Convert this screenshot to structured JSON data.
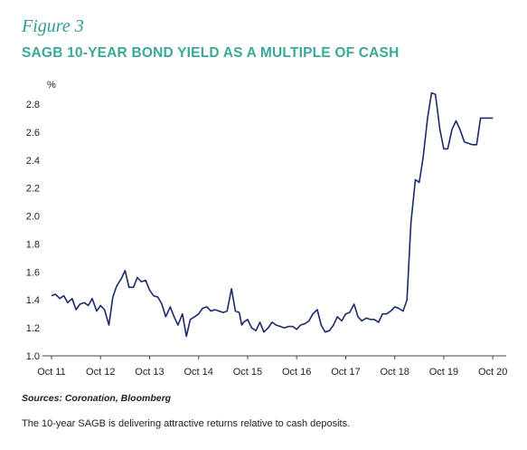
{
  "figure": {
    "label": "Figure 3",
    "title": "SAGB 10-YEAR BOND YIELD AS A MULTIPLE OF CASH",
    "source": "Sources: Coronation, Bloomberg",
    "caption": "The 10-year SAGB is delivering attractive returns relative to cash deposits."
  },
  "colors": {
    "line": "#1b2a6b",
    "title": "#3aa89a",
    "axis": "#444444"
  },
  "chart_data": {
    "type": "line",
    "title": "SAGB 10-YEAR BOND YIELD AS A MULTIPLE OF CASH",
    "ylabel": "%",
    "xlabel": "",
    "ylim": [
      1.0,
      2.9
    ],
    "xlim": [
      2011.75,
      2020.95
    ],
    "grid": false,
    "yticks": [
      "1.0",
      "1.2",
      "1.4",
      "1.6",
      "1.8",
      "2.0",
      "2.2",
      "2.4",
      "2.6",
      "2.8"
    ],
    "xticks": [
      {
        "x": 2011.75,
        "label": "Oct 11"
      },
      {
        "x": 2012.75,
        "label": "Oct 12"
      },
      {
        "x": 2013.75,
        "label": "Oct 13"
      },
      {
        "x": 2014.75,
        "label": "Oct 14"
      },
      {
        "x": 2015.75,
        "label": "Oct 15"
      },
      {
        "x": 2016.75,
        "label": "Oct 16"
      },
      {
        "x": 2017.75,
        "label": "Oct 17"
      },
      {
        "x": 2018.75,
        "label": "Oct 18"
      },
      {
        "x": 2019.75,
        "label": "Oct 19"
      },
      {
        "x": 2020.75,
        "label": "Oct 20"
      }
    ],
    "series": [
      {
        "x": [
          2011.75,
          2011.83,
          2011.92,
          2012.0,
          2012.08,
          2012.17,
          2012.25,
          2012.33,
          2012.42,
          2012.5,
          2012.58,
          2012.67,
          2012.75,
          2012.83,
          2012.92,
          2013.0,
          2013.08,
          2013.17,
          2013.25,
          2013.33,
          2013.42,
          2013.5,
          2013.58,
          2013.67,
          2013.75,
          2013.83,
          2013.92,
          2014.0,
          2014.08,
          2014.17,
          2014.25,
          2014.33,
          2014.42,
          2014.5,
          2014.58,
          2014.67,
          2014.75,
          2014.83,
          2014.92,
          2015.0,
          2015.08,
          2015.17,
          2015.25,
          2015.33,
          2015.42,
          2015.5,
          2015.58,
          2015.63,
          2015.67,
          2015.75,
          2015.83,
          2015.92,
          2016.0,
          2016.08,
          2016.17,
          2016.25,
          2016.33,
          2016.42,
          2016.5,
          2016.58,
          2016.67,
          2016.75,
          2016.83,
          2016.92,
          2017.0,
          2017.08,
          2017.17,
          2017.25,
          2017.33,
          2017.42,
          2017.5,
          2017.58,
          2017.67,
          2017.75,
          2017.83,
          2017.92,
          2018.0,
          2018.08,
          2018.17,
          2018.25,
          2018.33,
          2018.42,
          2018.5,
          2018.58,
          2018.67,
          2018.75,
          2018.83,
          2018.92,
          2019.0,
          2019.08,
          2019.17,
          2019.25,
          2019.33,
          2019.42,
          2019.5,
          2019.58,
          2019.67,
          2019.75,
          2019.83,
          2019.92,
          2020.0,
          2020.08,
          2020.17,
          2020.25,
          2020.33,
          2020.42,
          2020.5,
          2020.58,
          2020.67,
          2020.75,
          2020.83,
          2020.92
        ],
        "y": [
          1.43,
          1.44,
          1.41,
          1.43,
          1.38,
          1.41,
          1.33,
          1.37,
          1.38,
          1.36,
          1.41,
          1.32,
          1.36,
          1.33,
          1.22,
          1.42,
          1.5,
          1.55,
          1.61,
          1.49,
          1.49,
          1.56,
          1.53,
          1.54,
          1.47,
          1.43,
          1.42,
          1.37,
          1.28,
          1.35,
          1.28,
          1.22,
          1.3,
          1.14,
          1.26,
          1.28,
          1.3,
          1.34,
          1.35,
          1.32,
          1.33,
          1.32,
          1.31,
          1.32,
          1.48,
          1.32,
          1.31,
          1.22,
          1.24,
          1.26,
          1.2,
          1.18,
          1.24,
          1.17,
          1.2,
          1.24,
          1.22,
          1.21,
          1.2,
          1.21,
          1.21,
          1.19,
          1.22,
          1.23,
          1.25,
          1.3,
          1.33,
          1.22,
          1.17,
          1.18,
          1.22,
          1.28,
          1.25,
          1.3,
          1.31,
          1.37,
          1.28,
          1.25,
          1.27,
          1.26,
          1.26,
          1.24,
          1.3,
          1.3,
          1.32,
          1.35,
          1.34,
          1.32,
          1.4,
          1.95,
          2.26,
          2.24,
          2.42,
          2.7,
          2.88,
          2.87,
          2.62,
          2.48,
          2.48,
          2.62,
          2.68,
          2.62,
          2.53,
          2.52,
          2.51,
          2.51,
          2.7,
          2.7,
          2.7,
          2.7,
          2.7,
          2.7
        ]
      }
    ]
  }
}
